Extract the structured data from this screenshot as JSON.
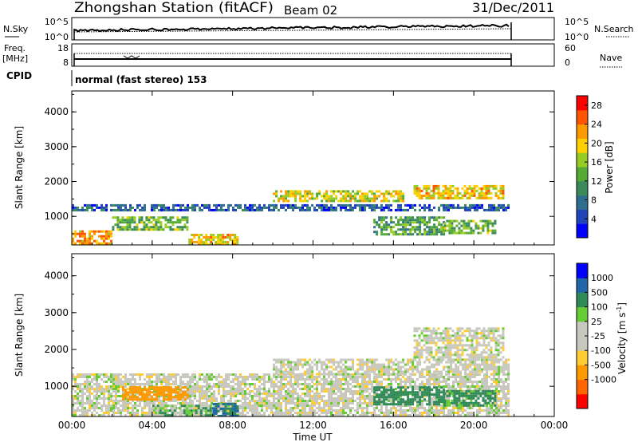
{
  "header": {
    "station": "Zhongshan Station (fitACF)",
    "beam": "Beam 02",
    "date": "31/Dec/2011"
  },
  "strip1": {
    "left_label": "N.Sky",
    "left_ticks": [
      "10^5",
      "10^0"
    ],
    "right_ticks": [
      "10^5",
      "10^0"
    ],
    "right_label": "N.Search"
  },
  "strip2": {
    "left_label_1": "Freq.",
    "left_label_2": "[MHz]",
    "left_ticks": [
      "18",
      "8"
    ],
    "right_ticks": [
      "60",
      "0"
    ],
    "right_label": "Nave"
  },
  "cpid": {
    "label": "CPID",
    "text": "normal (fast stereo) 153"
  },
  "colors": {
    "power_scale": [
      "#0000ff",
      "#2244bb",
      "#2e6e8e",
      "#3a8a5a",
      "#55aa33",
      "#99cc22",
      "#ffd000",
      "#ff9900",
      "#ff5500",
      "#ff0000"
    ],
    "velocity_scale": [
      "#ff0000",
      "#ff6600",
      "#ff9900",
      "#ffcc33",
      "#c8c8be",
      "#c8c8be",
      "#66cc33",
      "#2e8b57",
      "#2266aa",
      "#0000ff"
    ],
    "velocity_gray": "#c8c8be"
  },
  "chart_data": [
    {
      "type": "heatmap",
      "title": "",
      "xlabel": "",
      "ylabel": "Slant Range [km]",
      "xlim": [
        "00:00",
        "00:00"
      ],
      "ylim": [
        180,
        4600
      ],
      "yticks": [
        "1000",
        "2000",
        "3000",
        "4000"
      ],
      "colorbar_label": "Power [dB]",
      "colorbar_ticks": [
        "4",
        "8",
        "12",
        "16",
        "20",
        "24",
        "28"
      ],
      "colorbar_range": [
        0,
        30
      ],
      "series": [
        {
          "time_start_h": 0.0,
          "time_end_h": 2.0,
          "range_low_km": 180,
          "range_high_km": 600,
          "power_db": 22
        },
        {
          "time_start_h": 0.0,
          "time_end_h": 21.7,
          "range_low_km": 1150,
          "range_high_km": 1350,
          "power_db": 6
        },
        {
          "time_start_h": 2.0,
          "time_end_h": 5.8,
          "range_low_km": 650,
          "range_high_km": 1000,
          "power_db": 14
        },
        {
          "time_start_h": 5.8,
          "time_end_h": 8.2,
          "range_low_km": 180,
          "range_high_km": 500,
          "power_db": 20
        },
        {
          "time_start_h": 10.0,
          "time_end_h": 16.5,
          "range_low_km": 1450,
          "range_high_km": 1750,
          "power_db": 18
        },
        {
          "time_start_h": 15.0,
          "time_end_h": 18.5,
          "range_low_km": 500,
          "range_high_km": 1000,
          "power_db": 12
        },
        {
          "time_start_h": 17.0,
          "time_end_h": 21.5,
          "range_low_km": 1500,
          "range_high_km": 1900,
          "power_db": 20
        },
        {
          "time_start_h": 18.5,
          "time_end_h": 21.0,
          "range_low_km": 500,
          "range_high_km": 900,
          "power_db": 14
        }
      ]
    },
    {
      "type": "heatmap",
      "title": "",
      "xlabel": "Time UT",
      "ylabel": "Slant Range [km]",
      "xlim": [
        "00:00",
        "00:00"
      ],
      "ylim": [
        180,
        4600
      ],
      "xticks": [
        "00:00",
        "04:00",
        "08:00",
        "12:00",
        "16:00",
        "20:00",
        "00:00"
      ],
      "yticks": [
        "1000",
        "2000",
        "3000",
        "4000"
      ],
      "colorbar_label": "Velocity [m s-1]",
      "colorbar_ticks": [
        "1000",
        "500",
        "100",
        "25",
        "-25",
        "-100",
        "-500",
        "-1000"
      ],
      "colorbar_range": [
        -1250,
        1250
      ],
      "series": [
        {
          "time_start_h": 0.0,
          "time_end_h": 21.7,
          "range_low_km": 180,
          "range_high_km": 1350,
          "velocity_ms": 0
        },
        {
          "time_start_h": 2.5,
          "time_end_h": 5.8,
          "range_low_km": 650,
          "range_high_km": 1000,
          "velocity_ms": -200
        },
        {
          "time_start_h": 4.0,
          "time_end_h": 7.0,
          "range_low_km": 180,
          "range_high_km": 500,
          "velocity_ms": 80
        },
        {
          "time_start_h": 7.0,
          "time_end_h": 8.2,
          "range_low_km": 180,
          "range_high_km": 550,
          "velocity_ms": 300
        },
        {
          "time_start_h": 10.0,
          "time_end_h": 21.7,
          "range_low_km": 1300,
          "range_high_km": 1750,
          "velocity_ms": 0
        },
        {
          "time_start_h": 15.0,
          "time_end_h": 18.5,
          "range_low_km": 500,
          "range_high_km": 1000,
          "velocity_ms": 200
        },
        {
          "time_start_h": 17.0,
          "time_end_h": 21.5,
          "range_low_km": 1750,
          "range_high_km": 2600,
          "velocity_ms": 0
        },
        {
          "time_start_h": 18.5,
          "time_end_h": 21.0,
          "range_low_km": 500,
          "range_high_km": 900,
          "velocity_ms": 150
        }
      ]
    }
  ]
}
